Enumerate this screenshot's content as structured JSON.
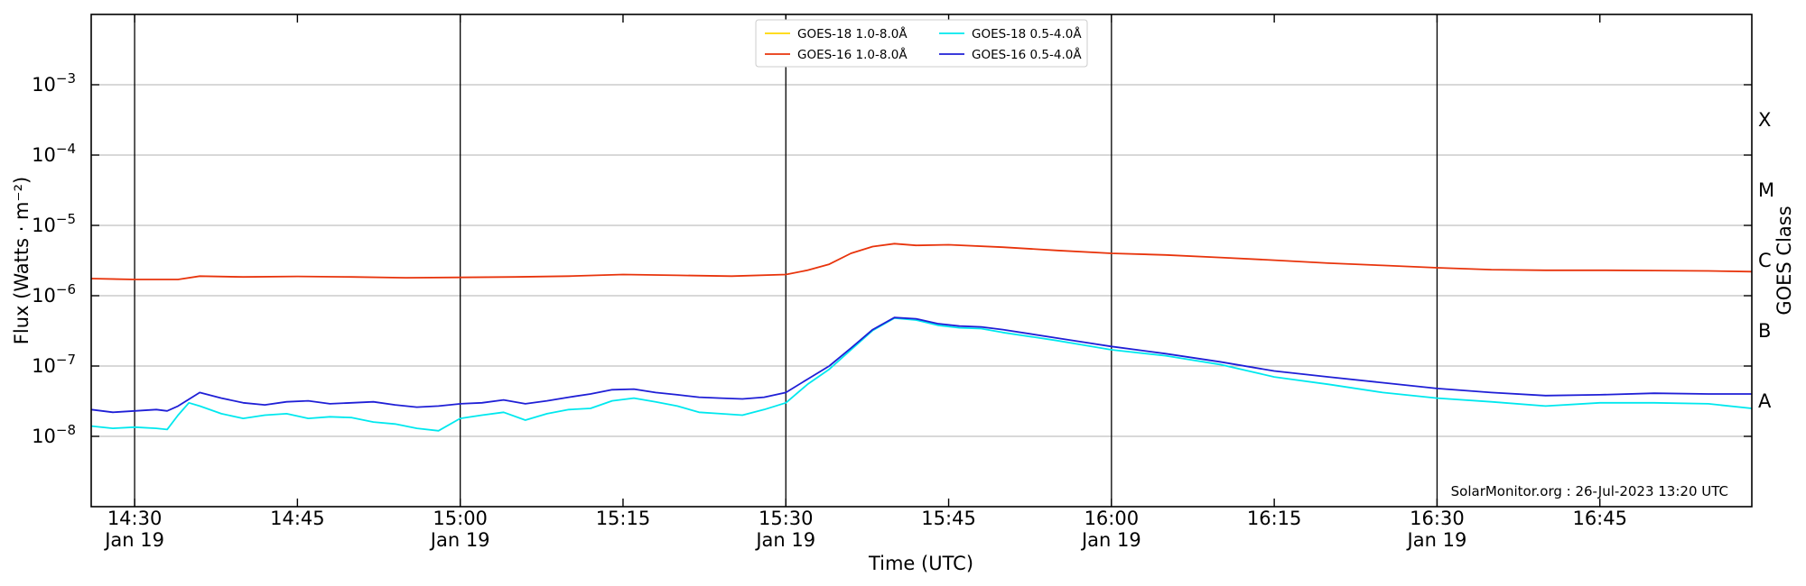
{
  "chart_data": {
    "type": "line",
    "xlabel": "Time (UTC)",
    "ylabel": "Flux (Watts · m⁻²)",
    "right_ylabel": "GOES Class",
    "credit": "SolarMonitor.org : 26-Jul-2023 13:20 UTC",
    "x_range": [
      "14:26",
      "16:59"
    ],
    "ylim": [
      1e-09,
      0.01
    ],
    "y_scale": "log",
    "grid": "horizontal",
    "legend_placement": "top-center",
    "x_ticks": [
      {
        "time": "14:30",
        "label": "14:30",
        "date_label": "Jan 19",
        "vline": true
      },
      {
        "time": "14:45",
        "label": "14:45",
        "date_label": "",
        "vline": false
      },
      {
        "time": "15:00",
        "label": "15:00",
        "date_label": "Jan 19",
        "vline": true
      },
      {
        "time": "15:15",
        "label": "15:15",
        "date_label": "",
        "vline": false
      },
      {
        "time": "15:30",
        "label": "15:30",
        "date_label": "Jan 19",
        "vline": true
      },
      {
        "time": "15:45",
        "label": "15:45",
        "date_label": "",
        "vline": false
      },
      {
        "time": "16:00",
        "label": "16:00",
        "date_label": "Jan 19",
        "vline": true
      },
      {
        "time": "16:15",
        "label": "16:15",
        "date_label": "",
        "vline": false
      },
      {
        "time": "16:30",
        "label": "16:30",
        "date_label": "Jan 19",
        "vline": true
      },
      {
        "time": "16:45",
        "label": "16:45",
        "date_label": "",
        "vline": false
      }
    ],
    "y_ticks": [
      {
        "value": 1e-08,
        "mantissa": "10",
        "exp": "−8"
      },
      {
        "value": 1e-07,
        "mantissa": "10",
        "exp": "−7"
      },
      {
        "value": 1e-06,
        "mantissa": "10",
        "exp": "−6"
      },
      {
        "value": 1e-05,
        "mantissa": "10",
        "exp": "−5"
      },
      {
        "value": 0.0001,
        "mantissa": "10",
        "exp": "−4"
      },
      {
        "value": 0.001,
        "mantissa": "10",
        "exp": "−3"
      }
    ],
    "goes_classes": [
      {
        "label": "A",
        "value": 1e-08
      },
      {
        "label": "B",
        "value": 1e-07
      },
      {
        "label": "C",
        "value": 1e-06
      },
      {
        "label": "M",
        "value": 1e-05
      },
      {
        "label": "X",
        "value": 0.0001
      }
    ],
    "series": [
      {
        "name": "GOES-18 1.0-8.0Å",
        "color": "#ffd700",
        "x": [],
        "y": []
      },
      {
        "name": "GOES-16 1.0-8.0Å",
        "color": "#e8340c",
        "x": [
          "14:26",
          "14:30",
          "14:34",
          "14:36",
          "14:40",
          "14:45",
          "14:50",
          "14:55",
          "15:00",
          "15:05",
          "15:10",
          "15:15",
          "15:20",
          "15:25",
          "15:30",
          "15:32",
          "15:34",
          "15:36",
          "15:38",
          "15:40",
          "15:42",
          "15:45",
          "15:50",
          "15:55",
          "16:00",
          "16:05",
          "16:10",
          "16:15",
          "16:20",
          "16:25",
          "16:30",
          "16:35",
          "16:40",
          "16:45",
          "16:50",
          "16:55",
          "16:59"
        ],
        "y": [
          1.75e-06,
          1.7e-06,
          1.7e-06,
          1.9e-06,
          1.85e-06,
          1.88e-06,
          1.85e-06,
          1.8e-06,
          1.82e-06,
          1.85e-06,
          1.9e-06,
          2e-06,
          1.95e-06,
          1.9e-06,
          2e-06,
          2.3e-06,
          2.8e-06,
          4e-06,
          5e-06,
          5.5e-06,
          5.2e-06,
          5.3e-06,
          4.9e-06,
          4.4e-06,
          4e-06,
          3.8e-06,
          3.5e-06,
          3.2e-06,
          2.9e-06,
          2.7e-06,
          2.5e-06,
          2.35e-06,
          2.3e-06,
          2.3e-06,
          2.28e-06,
          2.25e-06,
          2.2e-06
        ]
      },
      {
        "name": "GOES-18 0.5-4.0Å",
        "color": "#00e8ee",
        "x": [
          "14:26",
          "14:28",
          "14:30",
          "14:32",
          "14:33",
          "14:34",
          "14:35",
          "14:36",
          "14:38",
          "14:40",
          "14:42",
          "14:44",
          "14:46",
          "14:48",
          "14:50",
          "14:52",
          "14:54",
          "14:56",
          "14:58",
          "15:00",
          "15:02",
          "15:04",
          "15:06",
          "15:08",
          "15:10",
          "15:12",
          "15:14",
          "15:16",
          "15:18",
          "15:20",
          "15:22",
          "15:24",
          "15:26",
          "15:28",
          "15:30",
          "15:32",
          "15:34",
          "15:36",
          "15:38",
          "15:40",
          "15:42",
          "15:44",
          "15:46",
          "15:48",
          "15:50",
          "15:55",
          "16:00",
          "16:05",
          "16:10",
          "16:15",
          "16:20",
          "16:25",
          "16:30",
          "16:35",
          "16:40",
          "16:45",
          "16:50",
          "16:55",
          "16:59"
        ],
        "y": [
          1.4e-08,
          1.3e-08,
          1.35e-08,
          1.3e-08,
          1.25e-08,
          2e-08,
          3e-08,
          2.7e-08,
          2.1e-08,
          1.8e-08,
          2e-08,
          2.1e-08,
          1.8e-08,
          1.9e-08,
          1.85e-08,
          1.6e-08,
          1.5e-08,
          1.3e-08,
          1.2e-08,
          1.8e-08,
          2e-08,
          2.2e-08,
          1.7e-08,
          2.1e-08,
          2.4e-08,
          2.5e-08,
          3.2e-08,
          3.5e-08,
          3.1e-08,
          2.7e-08,
          2.2e-08,
          2.1e-08,
          2e-08,
          2.4e-08,
          3e-08,
          5.5e-08,
          9e-08,
          1.7e-07,
          3.2e-07,
          4.8e-07,
          4.5e-07,
          3.8e-07,
          3.5e-07,
          3.4e-07,
          3e-07,
          2.3e-07,
          1.7e-07,
          1.4e-07,
          1.05e-07,
          7e-08,
          5.5e-08,
          4.2e-08,
          3.5e-08,
          3.1e-08,
          2.7e-08,
          3e-08,
          3e-08,
          2.9e-08,
          2.5e-08
        ]
      },
      {
        "name": "GOES-16 0.5-4.0Å",
        "color": "#1f1fd6",
        "x": [
          "14:26",
          "14:28",
          "14:30",
          "14:32",
          "14:33",
          "14:34",
          "14:36",
          "14:38",
          "14:40",
          "14:42",
          "14:44",
          "14:46",
          "14:48",
          "14:50",
          "14:52",
          "14:54",
          "14:56",
          "14:58",
          "15:00",
          "15:02",
          "15:04",
          "15:06",
          "15:08",
          "15:10",
          "15:12",
          "15:14",
          "15:16",
          "15:18",
          "15:20",
          "15:22",
          "15:24",
          "15:26",
          "15:28",
          "15:30",
          "15:32",
          "15:34",
          "15:36",
          "15:38",
          "15:40",
          "15:42",
          "15:44",
          "15:46",
          "15:48",
          "15:50",
          "15:55",
          "16:00",
          "16:05",
          "16:10",
          "16:15",
          "16:20",
          "16:25",
          "16:30",
          "16:35",
          "16:40",
          "16:45",
          "16:50",
          "16:55",
          "16:59"
        ],
        "y": [
          2.4e-08,
          2.2e-08,
          2.3e-08,
          2.4e-08,
          2.3e-08,
          2.7e-08,
          4.2e-08,
          3.5e-08,
          3e-08,
          2.8e-08,
          3.1e-08,
          3.2e-08,
          2.9e-08,
          3e-08,
          3.1e-08,
          2.8e-08,
          2.6e-08,
          2.7e-08,
          2.9e-08,
          3e-08,
          3.3e-08,
          2.9e-08,
          3.2e-08,
          3.6e-08,
          4e-08,
          4.6e-08,
          4.7e-08,
          4.2e-08,
          3.9e-08,
          3.6e-08,
          3.5e-08,
          3.4e-08,
          3.6e-08,
          4.2e-08,
          6.5e-08,
          1e-07,
          1.8e-07,
          3.3e-07,
          4.9e-07,
          4.7e-07,
          4e-07,
          3.7e-07,
          3.6e-07,
          3.3e-07,
          2.5e-07,
          1.9e-07,
          1.5e-07,
          1.15e-07,
          8.5e-08,
          7e-08,
          5.8e-08,
          4.8e-08,
          4.2e-08,
          3.8e-08,
          3.9e-08,
          4.1e-08,
          4e-08,
          4e-08
        ]
      }
    ]
  }
}
